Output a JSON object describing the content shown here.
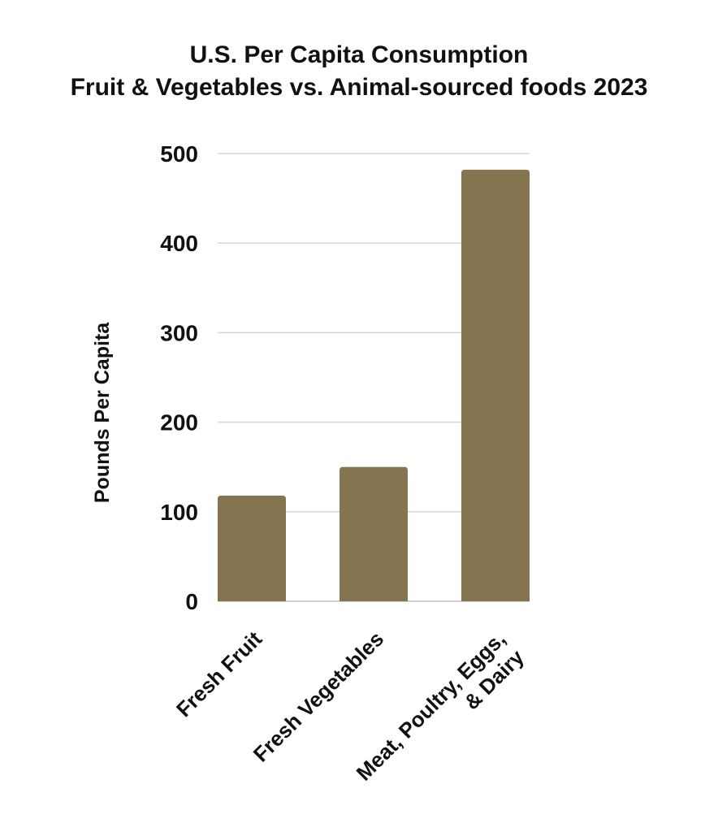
{
  "chart_data": {
    "type": "bar",
    "title": [
      "U.S. Per Capita Consumption",
      "Fruit & Vegetables vs. Animal-sourced foods 2023"
    ],
    "ylabel": "Pounds Per Capita",
    "xlabel": "",
    "categories": [
      [
        "Fresh Fruit"
      ],
      [
        "Fresh Vegetables"
      ],
      [
        "Meat, Poultry, Eggs,",
        "& Dairy"
      ]
    ],
    "values": [
      118,
      150,
      482
    ],
    "ylim": [
      0,
      500
    ],
    "yticks": [
      0,
      100,
      200,
      300,
      400,
      500
    ],
    "grid": true,
    "bar_color": "#84744f"
  }
}
